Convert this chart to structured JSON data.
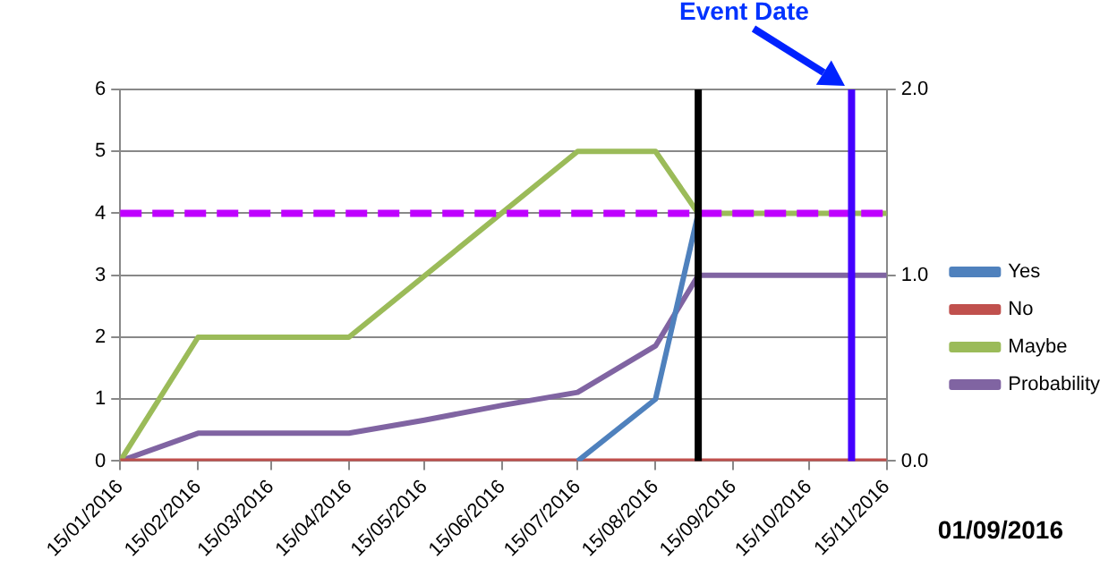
{
  "chart_data": {
    "type": "line",
    "series": [
      {
        "name": "Yes",
        "color": "#4f81bd",
        "x": [
          "2016-07-15",
          "2016-08-15",
          "2016-09-01"
        ],
        "values": [
          0,
          1,
          4
        ]
      },
      {
        "name": "No",
        "color": "#c0504d",
        "x": [
          "2016-01-15",
          "2016-11-15"
        ],
        "values": [
          0,
          0
        ]
      },
      {
        "name": "Maybe",
        "color": "#9bbb59",
        "x": [
          "2016-01-15",
          "2016-02-15",
          "2016-04-15",
          "2016-07-15",
          "2016-08-15",
          "2016-09-01",
          "2016-11-15"
        ],
        "values": [
          0,
          2,
          2,
          5,
          5,
          4,
          4
        ]
      },
      {
        "name": "Probability",
        "color": "#8064a2",
        "axis": "y2",
        "x": [
          "2016-01-15",
          "2016-02-15",
          "2016-04-15",
          "2016-05-15",
          "2016-06-15",
          "2016-07-15",
          "2016-08-15",
          "2016-09-01",
          "2016-11-15"
        ],
        "values": [
          0,
          0.15,
          0.15,
          0.22,
          0.3,
          0.37,
          0.62,
          1.0,
          1.0
        ]
      }
    ],
    "xlim": [
      "2016-01-15",
      "2016-11-15"
    ],
    "xticks": [
      {
        "value": "2016-01-15",
        "label": "15/01/2016"
      },
      {
        "value": "2016-02-15",
        "label": "15/02/2016"
      },
      {
        "value": "2016-03-15",
        "label": "15/03/2016"
      },
      {
        "value": "2016-04-15",
        "label": "15/04/2016"
      },
      {
        "value": "2016-05-15",
        "label": "15/05/2016"
      },
      {
        "value": "2016-06-15",
        "label": "15/06/2016"
      },
      {
        "value": "2016-07-15",
        "label": "15/07/2016"
      },
      {
        "value": "2016-08-15",
        "label": "15/08/2016"
      },
      {
        "value": "2016-09-15",
        "label": "15/09/2016"
      },
      {
        "value": "2016-10-15",
        "label": "15/10/2016"
      },
      {
        "value": "2016-11-15",
        "label": "15/11/2016"
      }
    ],
    "ylim": [
      0,
      6
    ],
    "yticks": [
      0,
      1,
      2,
      3,
      4,
      5,
      6
    ],
    "y2lim": [
      0,
      2
    ],
    "y2ticks": [
      {
        "value": 0,
        "label": "0.0"
      },
      {
        "value": 1,
        "label": "1.0"
      },
      {
        "value": 2,
        "label": "2.0"
      }
    ],
    "ref_lines": [
      {
        "axis": "y",
        "value": 4,
        "color": "#bf00ff",
        "line_style": "dashed"
      },
      {
        "axis": "x",
        "value": "2016-09-01",
        "color": "#000000",
        "line_style": "solid"
      },
      {
        "axis": "x",
        "value": "2016-11-01",
        "color": "#4400ff",
        "line_style": "solid"
      }
    ],
    "annotations": [
      "Event Date",
      "01/09/2016"
    ],
    "grid": "y",
    "legend": "right",
    "marker": "none",
    "line_style": "solid"
  }
}
